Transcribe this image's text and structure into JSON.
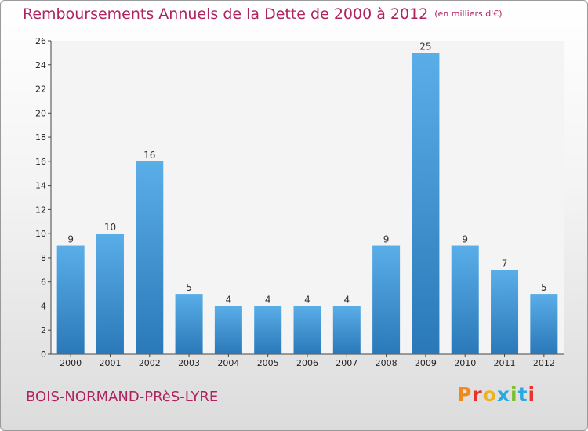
{
  "header": {
    "title": "Remboursements Annuels de la Dette de 2000 à 2012",
    "unit": "(en milliers d'€)"
  },
  "footer": {
    "commune": "BOIS-NORMAND-PRèS-LYRE",
    "logo_text": "Proxiti",
    "logo_colors": [
      "#f08a1c",
      "#e8332a",
      "#f0b21c",
      "#2aa8df",
      "#7cbf2e",
      "#2aa8df",
      "#e8332a"
    ]
  },
  "colors": {
    "title": "#b0225f",
    "bar_light": "#5aaee8",
    "bar_dark": "#2a78b8",
    "plot_bg": "#f4f4f4"
  },
  "chart_data": {
    "type": "bar",
    "categories": [
      "2000",
      "2001",
      "2002",
      "2003",
      "2004",
      "2005",
      "2006",
      "2007",
      "2008",
      "2009",
      "2010",
      "2011",
      "2012"
    ],
    "values": [
      9,
      10,
      16,
      5,
      4,
      4,
      4,
      4,
      9,
      25,
      9,
      7,
      5
    ],
    "title": "Remboursements Annuels de la Dette de 2000 à 2012",
    "xlabel": "",
    "ylabel": "",
    "ylim": [
      0,
      26
    ],
    "yticks": [
      0,
      2,
      4,
      6,
      8,
      10,
      12,
      14,
      16,
      18,
      20,
      22,
      24,
      26
    ],
    "grid": false,
    "legend": "none",
    "data_labels": true
  }
}
